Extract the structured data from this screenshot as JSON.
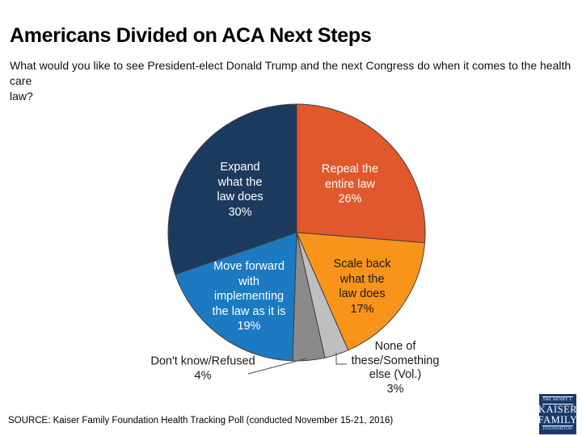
{
  "page": {
    "title": "Americans Divided on ACA Next Steps",
    "subtitle": "What would you like to see President-elect Donald Trump and the next Congress do when it comes to the health care\nlaw?",
    "source": "SOURCE: Kaiser Family Foundation Health Tracking Poll (conducted November 15-21, 2016)"
  },
  "logo": {
    "top": "THE HENRY J.",
    "kaiser": "KAISER",
    "family": "FAMILY",
    "foundation": "FOUNDATION",
    "bg_color": "#1A3A6B"
  },
  "chart_data": {
    "type": "pie",
    "title": "Americans Divided on ACA Next Steps",
    "question": "What would you like to see President-elect Donald Trump and the next Congress do when it comes to the health care law?",
    "unit": "percent",
    "start_angle": "top",
    "direction": "clockwise",
    "outline_color": "#404040",
    "leader_line_color": "#4d4d4d",
    "slices": [
      {
        "key": "repeal-entire-law",
        "label": "Repeal the entire law",
        "value": 26,
        "color": "#E0582C",
        "text_color": "#FFFFFF",
        "display": "Repeal the\nentire law\n26%"
      },
      {
        "key": "scale-back",
        "label": "Scale back what the law does",
        "value": 17,
        "color": "#F9941A",
        "text_color": "#1A1A1A",
        "display": "Scale back\nwhat the\nlaw does\n17%"
      },
      {
        "key": "none-of-these",
        "label": "None of these/Something else (Vol.)",
        "value": 3,
        "color": "#BFBFBF",
        "text_color": "#1A1A1A",
        "display": "None of\nthese/Something\nelse (Vol.)\n3%"
      },
      {
        "key": "dont-know-refused",
        "label": "Don't know/Refused",
        "value": 4,
        "color": "#8A8A8A",
        "text_color": "#1A1A1A",
        "display": "Don't know/Refused\n4%"
      },
      {
        "key": "move-forward",
        "label": "Move forward with implementing the law as it is",
        "value": 19,
        "color": "#1B7AC2",
        "text_color": "#FFFFFF",
        "display": "Move forward\nwith\nimplementing\nthe law as it is\n19%"
      },
      {
        "key": "expand-law",
        "label": "Expand what the law does",
        "value": 30,
        "color": "#1C3A5E",
        "text_color": "#FFFFFF",
        "display": "Expand\nwhat the\nlaw does\n30%"
      }
    ]
  }
}
